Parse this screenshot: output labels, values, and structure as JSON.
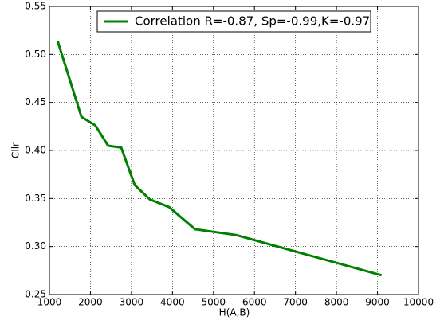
{
  "chart_data": {
    "type": "line",
    "xlabel": "H(A,B)",
    "ylabel": "Cllr",
    "x": [
      1200,
      1780,
      2120,
      2430,
      2750,
      3080,
      3450,
      3920,
      4550,
      5550,
      9100
    ],
    "series": [
      {
        "name": "Correlation R=-0.87, Sp=-0.99,K=-0.97",
        "color": "#008000",
        "values": [
          0.514,
          0.435,
          0.426,
          0.405,
          0.403,
          0.364,
          0.349,
          0.341,
          0.318,
          0.312,
          0.27
        ]
      }
    ],
    "xlim": [
      1000,
      10000
    ],
    "xticks": [
      1000,
      2000,
      3000,
      4000,
      5000,
      6000,
      7000,
      8000,
      9000,
      10000
    ],
    "ylim": [
      0.25,
      0.55
    ],
    "yticks": [
      0.25,
      {
        "value": 0.3,
        "label": "0.30"
      },
      0.35,
      {
        "value": 0.4,
        "label": "0.40"
      },
      0.45,
      {
        "value": 0.5,
        "label": "0.50"
      },
      0.55
    ],
    "grid": true,
    "legend": "upper center"
  }
}
